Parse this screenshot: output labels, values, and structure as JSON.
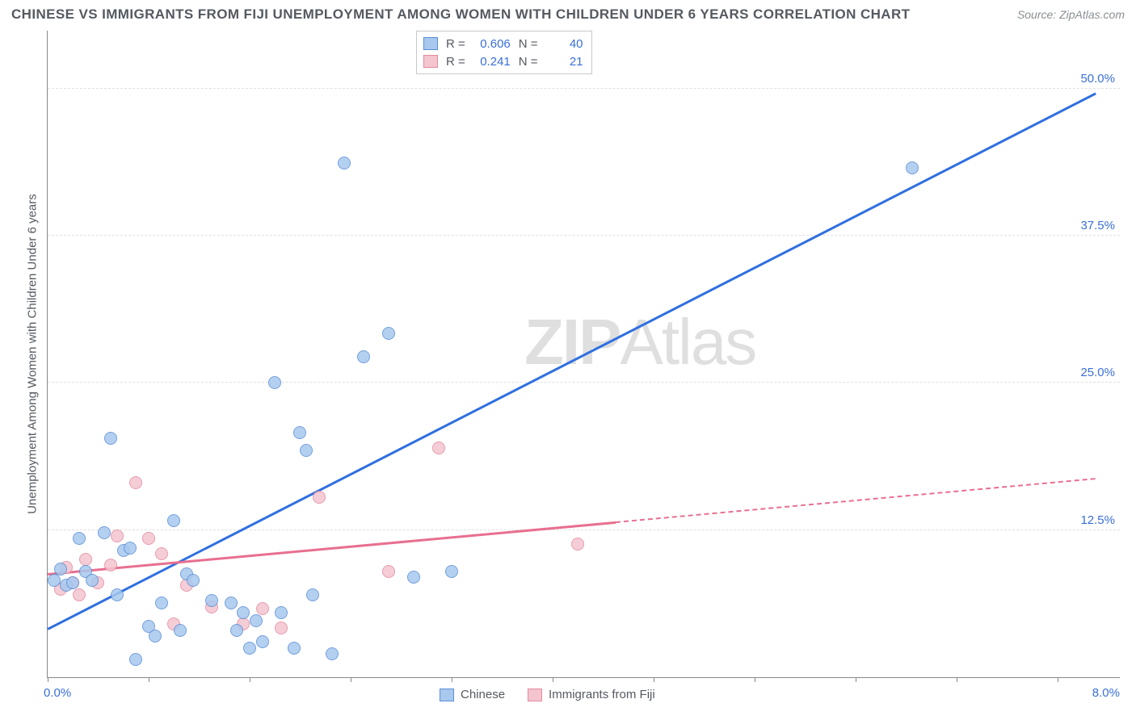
{
  "header": {
    "title": "CHINESE VS IMMIGRANTS FROM FIJI UNEMPLOYMENT AMONG WOMEN WITH CHILDREN UNDER 6 YEARS CORRELATION CHART",
    "source": "Source: ZipAtlas.com"
  },
  "ylabel": "Unemployment Among Women with Children Under 6 years",
  "watermark": {
    "pre": "ZIP",
    "post": "Atlas"
  },
  "chart": {
    "type": "scatter",
    "xlim": [
      0,
      8.5
    ],
    "ylim": [
      0,
      55
    ],
    "x_origin_label": "0.0%",
    "x_max_label": "8.0%",
    "y_tick_labels": [
      "12.5%",
      "25.0%",
      "37.5%",
      "50.0%"
    ],
    "y_tick_values": [
      12.5,
      25,
      37.5,
      50
    ],
    "x_tick_values": [
      0,
      0.8,
      1.6,
      2.4,
      3.2,
      4.0,
      4.8,
      5.6,
      6.4,
      7.2,
      8.0
    ],
    "grid_color": "#e0e0e0",
    "background_color": "#ffffff",
    "series": [
      {
        "name": "Chinese",
        "fill": "#a8c8ee",
        "stroke": "#5b8fd6",
        "trend_color": "#2f6fe0",
        "R": "0.606",
        "N": "40",
        "trend": {
          "x1": 0.0,
          "y1": 4.0,
          "x2": 8.3,
          "y2": 49.5
        },
        "points": [
          [
            0.05,
            8.2
          ],
          [
            0.1,
            9.2
          ],
          [
            0.15,
            7.8
          ],
          [
            0.2,
            8.0
          ],
          [
            0.25,
            11.8
          ],
          [
            0.3,
            9.0
          ],
          [
            0.35,
            8.2
          ],
          [
            0.45,
            12.3
          ],
          [
            0.5,
            20.3
          ],
          [
            0.55,
            7.0
          ],
          [
            0.6,
            10.8
          ],
          [
            0.65,
            11.0
          ],
          [
            0.7,
            1.5
          ],
          [
            0.8,
            4.3
          ],
          [
            0.85,
            3.5
          ],
          [
            0.9,
            6.3
          ],
          [
            1.0,
            13.3
          ],
          [
            1.05,
            4.0
          ],
          [
            1.1,
            8.8
          ],
          [
            1.15,
            8.2
          ],
          [
            1.3,
            6.5
          ],
          [
            1.45,
            6.3
          ],
          [
            1.5,
            4.0
          ],
          [
            1.55,
            5.5
          ],
          [
            1.6,
            2.5
          ],
          [
            1.65,
            4.8
          ],
          [
            1.7,
            3.0
          ],
          [
            1.8,
            25.0
          ],
          [
            1.85,
            5.5
          ],
          [
            1.95,
            2.5
          ],
          [
            2.0,
            20.8
          ],
          [
            2.05,
            19.3
          ],
          [
            2.1,
            7.0
          ],
          [
            2.25,
            2.0
          ],
          [
            2.35,
            43.7
          ],
          [
            2.5,
            27.2
          ],
          [
            2.7,
            29.2
          ],
          [
            2.9,
            8.5
          ],
          [
            3.2,
            9.0
          ],
          [
            6.85,
            43.3
          ]
        ]
      },
      {
        "name": "Immigrants from Fiji",
        "fill": "#f4c5cf",
        "stroke": "#e48aa0",
        "trend_color": "#e86f8f",
        "R": "0.241",
        "N": "21",
        "trend_solid": {
          "x1": 0.0,
          "y1": 8.7,
          "x2": 4.5,
          "y2": 13.1
        },
        "trend_dash": {
          "x1": 4.5,
          "y1": 13.1,
          "x2": 8.3,
          "y2": 16.8
        },
        "points": [
          [
            0.1,
            7.5
          ],
          [
            0.15,
            9.3
          ],
          [
            0.2,
            8.0
          ],
          [
            0.25,
            7.0
          ],
          [
            0.3,
            10.0
          ],
          [
            0.4,
            8.0
          ],
          [
            0.5,
            9.5
          ],
          [
            0.55,
            12.0
          ],
          [
            0.7,
            16.5
          ],
          [
            0.8,
            11.8
          ],
          [
            0.9,
            10.5
          ],
          [
            1.0,
            4.5
          ],
          [
            1.1,
            7.8
          ],
          [
            1.3,
            6.0
          ],
          [
            1.55,
            4.5
          ],
          [
            1.7,
            5.8
          ],
          [
            1.85,
            4.2
          ],
          [
            2.15,
            15.3
          ],
          [
            2.7,
            9.0
          ],
          [
            3.1,
            19.5
          ],
          [
            4.2,
            11.3
          ]
        ]
      }
    ]
  }
}
